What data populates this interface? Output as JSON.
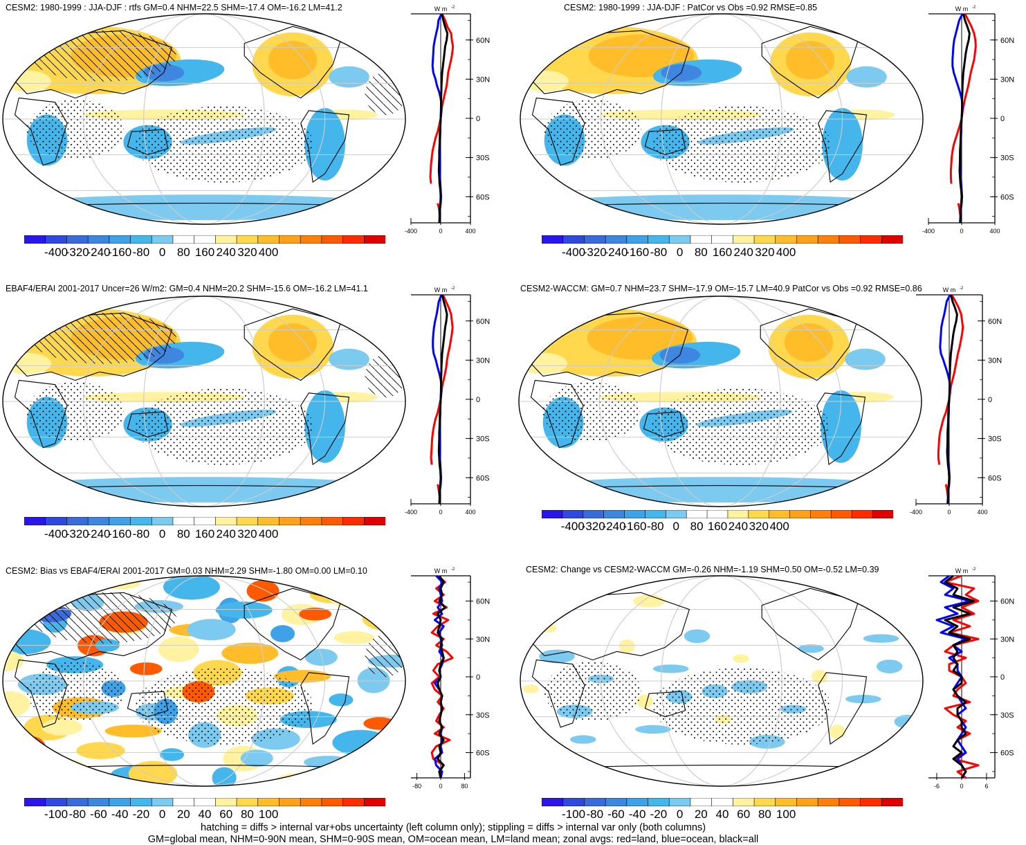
{
  "colors": {
    "land_line": "#ff0000",
    "ocean_line": "#0000ff",
    "all_line": "#000000",
    "palette": [
      "#2a16e8",
      "#2e48e0",
      "#3a6bdc",
      "#3f86e0",
      "#3fa1e6",
      "#45b6ec",
      "#7ccaf0",
      "#ffffff",
      "#ffffff",
      "#fff2a0",
      "#ffd84d",
      "#ffbd2a",
      "#ffa21a",
      "#ff7f0a",
      "#ff5a00",
      "#ff2c00",
      "#e00000"
    ]
  },
  "zonal_axis": {
    "units_label": "W m",
    "units_exp": "-2",
    "lat_ticks": [
      "60N",
      "30N",
      "0",
      "30S",
      "60S"
    ]
  },
  "footer": {
    "line1": "hatching = diffs > internal var+obs uncertainty (left column only); stippling = diffs > internal var only (both columns)",
    "line2": "GM=global mean, NHM=0-90N mean, SHM=0-90S mean, OM=ocean mean, LM=land mean; zonal avgs: red=land, blue=ocean, black=all"
  },
  "chart_data": [
    {
      "type": "heatmap",
      "title": "CESM2: 1980-1999 : JJA-DJF : rtfs GM=0.4 NHM=22.5 SHM=-17.4 OM=-16.2 LM=41.2",
      "colorbar_ticks": [
        "-400",
        "-320",
        "-240",
        "-160",
        "-80",
        "0",
        "80",
        "160",
        "240",
        "320",
        "400"
      ],
      "zonal_xlim": [
        -400,
        400
      ],
      "zonal_xticks": [
        "-400",
        "0",
        "400"
      ],
      "hatching": true,
      "stippling": true,
      "zonal": {
        "lat": [
          80,
          75,
          70,
          65,
          60,
          55,
          50,
          45,
          40,
          35,
          30,
          25,
          20,
          15,
          10,
          5,
          0,
          -5,
          -10,
          -15,
          -20,
          -25,
          -30,
          -35,
          -40,
          -45,
          -50,
          -55,
          -60,
          -65,
          -70,
          -75,
          -80
        ],
        "land": [
          20,
          60,
          90,
          140,
          150,
          165,
          155,
          140,
          120,
          100,
          90,
          80,
          60,
          40,
          20,
          10,
          0,
          -20,
          -40,
          -70,
          -90,
          -110,
          -120,
          -130,
          -135,
          -140,
          -130,
          null,
          null,
          -40,
          -20,
          -15,
          -10
        ],
        "ocean": [
          10,
          -30,
          -40,
          -60,
          -80,
          -95,
          -100,
          -105,
          -110,
          -100,
          -70,
          -50,
          -20,
          0,
          10,
          5,
          0,
          -5,
          -5,
          -8,
          -10,
          -10,
          -12,
          -15,
          -15,
          -10,
          -5,
          0,
          5,
          0,
          -10,
          -15,
          -20
        ],
        "all": [
          15,
          35,
          60,
          90,
          80,
          60,
          50,
          40,
          30,
          20,
          15,
          10,
          8,
          5,
          5,
          3,
          0,
          -5,
          -10,
          -12,
          -15,
          -20,
          -20,
          -22,
          -25,
          -20,
          -15,
          -5,
          0,
          -5,
          -15,
          -12,
          -15
        ]
      }
    },
    {
      "type": "heatmap",
      "title": "CESM2: 1980-1999 : JJA-DJF : PatCor vs Obs =0.92 RMSE=0.85",
      "colorbar_ticks": [
        "-400",
        "-320",
        "-240",
        "-160",
        "-80",
        "0",
        "80",
        "160",
        "240",
        "320",
        "400"
      ],
      "zonal_xlim": [
        -400,
        400
      ],
      "zonal_xticks": [
        "-400",
        "0",
        "400"
      ],
      "hatching": false,
      "stippling": true,
      "zonal": {
        "lat": [
          80,
          75,
          70,
          65,
          60,
          55,
          50,
          45,
          40,
          35,
          30,
          25,
          20,
          15,
          10,
          5,
          0,
          -5,
          -10,
          -15,
          -20,
          -25,
          -30,
          -35,
          -40,
          -45,
          -50,
          -55,
          -60,
          -65,
          -70,
          -75,
          -80
        ],
        "land": [
          40,
          80,
          120,
          150,
          165,
          170,
          160,
          150,
          130,
          110,
          95,
          80,
          60,
          40,
          25,
          10,
          0,
          -20,
          -45,
          -70,
          -95,
          -110,
          -120,
          -125,
          -130,
          -130,
          -125,
          null,
          null,
          -40,
          -25,
          -15,
          -10
        ],
        "ocean": [
          10,
          -30,
          -50,
          -70,
          -90,
          -100,
          -105,
          -110,
          -110,
          -95,
          -70,
          -45,
          -20,
          0,
          10,
          5,
          0,
          -5,
          -5,
          -8,
          -10,
          -12,
          -12,
          -15,
          -15,
          -10,
          -5,
          0,
          5,
          0,
          -10,
          -15,
          -20
        ],
        "all": [
          20,
          40,
          70,
          95,
          85,
          65,
          50,
          40,
          30,
          20,
          15,
          10,
          8,
          5,
          5,
          3,
          0,
          -5,
          -10,
          -12,
          -15,
          -20,
          -20,
          -22,
          -25,
          -20,
          -15,
          -5,
          0,
          -5,
          -15,
          -12,
          -15
        ]
      }
    },
    {
      "type": "heatmap",
      "title": "EBAF4/ERAI 2001-2017 Uncer=26 W/m2: GM=0.4 NHM=20.2 SHM=-15.6 OM=-16.2 LM=41.1",
      "colorbar_ticks": [
        "-400",
        "-320",
        "-240",
        "-160",
        "-80",
        "0",
        "80",
        "160",
        "240",
        "320",
        "400"
      ],
      "zonal_xlim": [
        -400,
        400
      ],
      "zonal_xticks": [
        "-400",
        "0",
        "400"
      ],
      "hatching": true,
      "stippling": true,
      "zonal": {
        "lat": [
          80,
          75,
          70,
          65,
          60,
          55,
          50,
          45,
          40,
          35,
          30,
          25,
          20,
          15,
          10,
          5,
          0,
          -5,
          -10,
          -15,
          -20,
          -25,
          -30,
          -35,
          -40,
          -45,
          -50,
          -55,
          -60,
          -65,
          -70,
          -75,
          -80
        ],
        "land": [
          30,
          70,
          110,
          140,
          150,
          160,
          150,
          135,
          120,
          100,
          85,
          75,
          60,
          40,
          20,
          10,
          0,
          -20,
          -40,
          -70,
          -90,
          -105,
          -115,
          -120,
          -125,
          -130,
          -120,
          null,
          null,
          -40,
          -25,
          -15,
          -10
        ],
        "ocean": [
          10,
          -25,
          -40,
          -55,
          -75,
          -90,
          -100,
          -105,
          -105,
          -95,
          -65,
          -45,
          -20,
          0,
          10,
          5,
          0,
          -5,
          -5,
          -8,
          -10,
          -10,
          -12,
          -15,
          -15,
          -10,
          -5,
          0,
          5,
          0,
          -10,
          -15,
          -20
        ],
        "all": [
          20,
          40,
          65,
          85,
          75,
          60,
          50,
          40,
          30,
          20,
          15,
          10,
          8,
          5,
          5,
          3,
          0,
          -5,
          -10,
          -12,
          -15,
          -20,
          -20,
          -22,
          -25,
          -20,
          -15,
          -5,
          0,
          -5,
          -15,
          -12,
          -15
        ]
      }
    },
    {
      "type": "heatmap",
      "title": "CESM2-WACCM: GM=0.7 NHM=23.7 SHM=-17.9 OM=-15.7 LM=40.9 PatCor vs Obs =0.92 RMSE=0.86",
      "colorbar_ticks": [
        "-400",
        "-320",
        "-240",
        "-160",
        "-80",
        "0",
        "80",
        "160",
        "240",
        "320",
        "400"
      ],
      "zonal_xlim": [
        -400,
        400
      ],
      "zonal_xticks": [
        "-400",
        "0",
        "400"
      ],
      "hatching": false,
      "stippling": true,
      "zonal": {
        "lat": [
          80,
          75,
          70,
          65,
          60,
          55,
          50,
          45,
          40,
          35,
          30,
          25,
          20,
          15,
          10,
          5,
          0,
          -5,
          -10,
          -15,
          -20,
          -25,
          -30,
          -35,
          -40,
          -45,
          -50,
          -55,
          -60,
          -65,
          -70,
          -75,
          -80
        ],
        "land": [
          30,
          75,
          115,
          145,
          155,
          165,
          155,
          140,
          125,
          105,
          90,
          75,
          60,
          40,
          20,
          10,
          0,
          -20,
          -40,
          -70,
          -90,
          -110,
          -120,
          -125,
          -130,
          -130,
          -120,
          null,
          null,
          -40,
          -25,
          -15,
          -10
        ],
        "ocean": [
          10,
          -30,
          -45,
          -60,
          -80,
          -95,
          -100,
          -105,
          -110,
          -100,
          -70,
          -45,
          -20,
          0,
          10,
          5,
          0,
          -5,
          -5,
          -8,
          -10,
          -12,
          -12,
          -15,
          -15,
          -10,
          -5,
          0,
          5,
          0,
          -10,
          -15,
          -20
        ],
        "all": [
          20,
          40,
          70,
          95,
          85,
          65,
          50,
          40,
          30,
          20,
          15,
          10,
          8,
          5,
          5,
          3,
          0,
          -5,
          -10,
          -12,
          -15,
          -20,
          -20,
          -22,
          -25,
          -20,
          -15,
          -5,
          0,
          -5,
          -15,
          -12,
          -15
        ]
      }
    },
    {
      "type": "heatmap",
      "title": "CESM2: Bias vs EBAF4/ERAI 2001-2017 GM=0.03 NHM=2.29 SHM=-1.80 OM=0.00 LM=0.10",
      "colorbar_ticks": [
        "-100",
        "-80",
        "-60",
        "-40",
        "-20",
        "0",
        "20",
        "40",
        "60",
        "80",
        "100"
      ],
      "zonal_xlim": [
        -100,
        100
      ],
      "zonal_xticks": [
        "-80",
        "0",
        "80"
      ],
      "hatching": true,
      "stippling": true,
      "zonal": {
        "lat": [
          80,
          75,
          70,
          65,
          60,
          55,
          50,
          45,
          40,
          35,
          30,
          25,
          20,
          15,
          10,
          5,
          0,
          -5,
          -10,
          -15,
          -20,
          -25,
          -30,
          -35,
          -40,
          -45,
          -50,
          -55,
          -60,
          -65,
          -70,
          -75,
          -80
        ],
        "land": [
          -10,
          15,
          -15,
          10,
          -20,
          20,
          -25,
          25,
          -10,
          -30,
          10,
          -15,
          20,
          40,
          -10,
          -25,
          -5,
          -30,
          -20,
          5,
          -10,
          10,
          -5,
          -15,
          10,
          -20,
          30,
          -15,
          -30,
          -25,
          10,
          -5,
          0
        ],
        "ocean": [
          -15,
          5,
          -5,
          0,
          5,
          -10,
          5,
          -20,
          10,
          -5,
          0,
          5,
          -5,
          10,
          5,
          -5,
          0,
          -20,
          -5,
          5,
          0,
          5,
          0,
          -5,
          5,
          0,
          5,
          0,
          5,
          -20,
          -15,
          5,
          0
        ],
        "all": [
          -5,
          10,
          0,
          5,
          -5,
          15,
          -10,
          0,
          -5,
          -10,
          5,
          0,
          5,
          10,
          0,
          -5,
          0,
          -10,
          -5,
          5,
          0,
          5,
          0,
          -5,
          5,
          -5,
          10,
          -5,
          0,
          -10,
          10,
          -5,
          0
        ]
      }
    },
    {
      "type": "heatmap",
      "title": "CESM2: Change vs CESM2-WACCM GM=-0.26 NHM=-1.19 SHM=0.50 OM=-0.52 LM=0.39",
      "colorbar_ticks": [
        "-100",
        "-80",
        "-60",
        "-40",
        "-20",
        "0",
        "20",
        "40",
        "60",
        "80",
        "100"
      ],
      "zonal_xlim": [
        -8,
        8
      ],
      "zonal_xticks": [
        "-6",
        "0",
        "6"
      ],
      "hatching": false,
      "stippling": true,
      "zonal": {
        "lat": [
          80,
          75,
          70,
          65,
          60,
          55,
          50,
          45,
          40,
          35,
          30,
          25,
          20,
          15,
          10,
          5,
          0,
          -5,
          -10,
          -15,
          -20,
          -25,
          -30,
          -35,
          -40,
          -45,
          -50,
          -55,
          -60,
          -65,
          -70,
          -75,
          -80
        ],
        "land": [
          0,
          -4,
          3,
          1,
          4,
          0,
          3,
          -2,
          2,
          -3,
          4,
          -2,
          -4,
          1,
          -3,
          -3,
          0,
          1,
          -1,
          -2,
          2,
          -4,
          -2,
          1,
          -1,
          2,
          -1,
          0,
          1,
          -2,
          4,
          -1,
          1
        ],
        "ocean": [
          -3,
          -5,
          -2,
          -4,
          2,
          -4,
          -1,
          -6,
          -2,
          -5,
          1,
          -2,
          0,
          -3,
          -1,
          -1,
          0,
          -1,
          -2,
          -1,
          0,
          1,
          -1,
          0,
          1,
          0,
          -1,
          0,
          1,
          -1,
          0,
          1,
          0
        ],
        "all": [
          -2,
          -4,
          -1,
          -2,
          3,
          -2,
          2,
          -4,
          -1,
          -3,
          2,
          -2,
          -1,
          -2,
          -1,
          -2,
          0,
          0,
          -2,
          -1,
          1,
          -1,
          -1,
          0,
          0,
          1,
          -1,
          -2,
          0,
          -2,
          0,
          1,
          0
        ]
      }
    }
  ]
}
